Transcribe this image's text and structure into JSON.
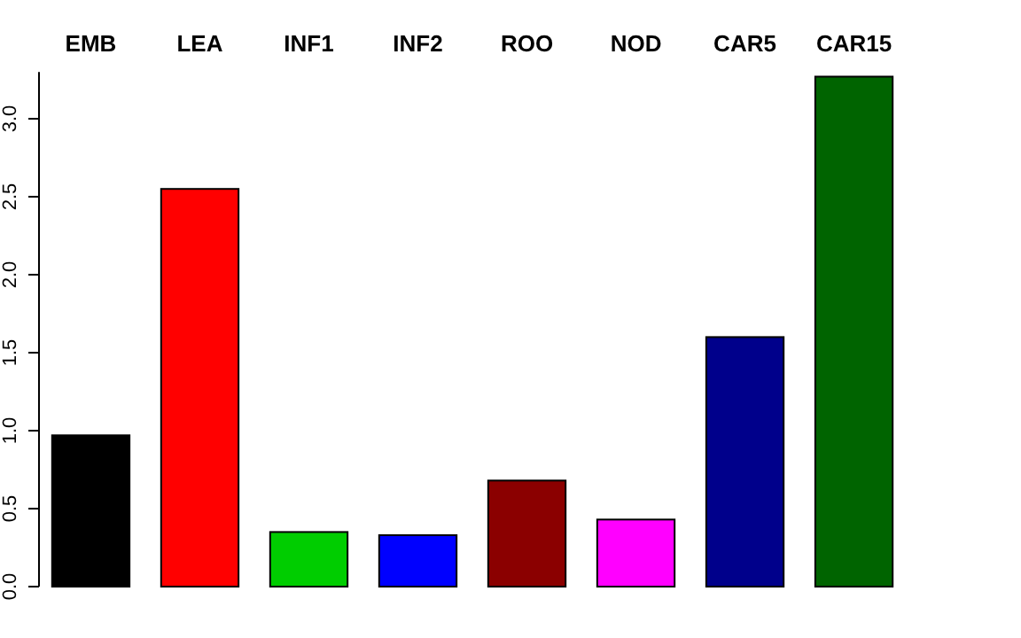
{
  "chart_data": {
    "type": "bar",
    "categories": [
      "EMB",
      "LEA",
      "INF1",
      "INF2",
      "ROO",
      "NOD",
      "CAR5",
      "CAR15"
    ],
    "values": [
      0.97,
      2.55,
      0.35,
      0.33,
      0.68,
      0.43,
      1.6,
      3.27
    ],
    "colors": [
      "#000000",
      "#ff0000",
      "#00cd00",
      "#0000ff",
      "#8b0000",
      "#ff00ff",
      "#00008b",
      "#006400"
    ],
    "ylim": [
      0,
      3.3
    ],
    "yticks": [
      {
        "value": 0,
        "label": "0.0"
      },
      {
        "value": 0.5,
        "label": "0.5"
      },
      {
        "value": 1,
        "label": "1.0"
      },
      {
        "value": 1.5,
        "label": "1.5"
      },
      {
        "value": 2,
        "label": "2.0"
      },
      {
        "value": 2.5,
        "label": "2.5"
      },
      {
        "value": 3,
        "label": "3.0"
      }
    ],
    "grid": false
  }
}
